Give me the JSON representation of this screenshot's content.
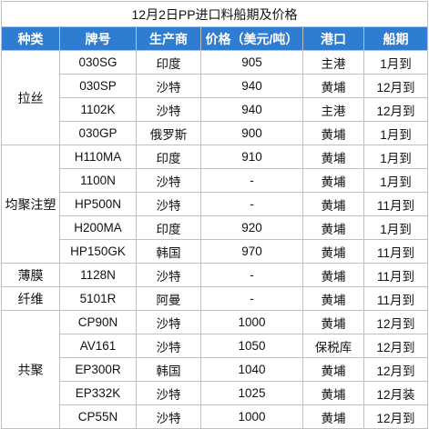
{
  "title": "12月2日PP进口料船期及价格",
  "headers": [
    "种类",
    "牌号",
    "生产商",
    "价格（美元/吨）",
    "港口",
    "船期"
  ],
  "categories": [
    {
      "name": "拉丝",
      "rowspan": 4
    },
    {
      "name": "均聚注塑",
      "rowspan": 5
    },
    {
      "name": "薄膜",
      "rowspan": 1
    },
    {
      "name": "纤维",
      "rowspan": 1
    },
    {
      "name": "共聚",
      "rowspan": 5
    }
  ],
  "rows": [
    {
      "grade": "030SG",
      "maker": "印度",
      "price": "905",
      "port": "主港",
      "ship": "1月到"
    },
    {
      "grade": "030SP",
      "maker": "沙特",
      "price": "940",
      "port": "黄埔",
      "ship": "12月到"
    },
    {
      "grade": "1102K",
      "maker": "沙特",
      "price": "940",
      "port": "主港",
      "ship": "12月到"
    },
    {
      "grade": "030GP",
      "maker": "俄罗斯",
      "price": "900",
      "port": "黄埔",
      "ship": "1月到"
    },
    {
      "grade": "H110MA",
      "maker": "印度",
      "price": "910",
      "port": "黄埔",
      "ship": "1月到"
    },
    {
      "grade": "1100N",
      "maker": "沙特",
      "price": "-",
      "port": "黄埔",
      "ship": "1月到"
    },
    {
      "grade": "HP500N",
      "maker": "沙特",
      "price": "-",
      "port": "黄埔",
      "ship": "11月到"
    },
    {
      "grade": "H200MA",
      "maker": "印度",
      "price": "920",
      "port": "黄埔",
      "ship": "1月到"
    },
    {
      "grade": "HP150GK",
      "maker": "韩国",
      "price": "970",
      "port": "黄埔",
      "ship": "11月到"
    },
    {
      "grade": "1128N",
      "maker": "沙特",
      "price": "-",
      "port": "黄埔",
      "ship": "11月到"
    },
    {
      "grade": "5101R",
      "maker": "阿曼",
      "price": "-",
      "port": "黄埔",
      "ship": "11月到"
    },
    {
      "grade": "CP90N",
      "maker": "沙特",
      "price": "1000",
      "port": "黄埔",
      "ship": "12月到"
    },
    {
      "grade": "AV161",
      "maker": "沙特",
      "price": "1050",
      "port": "保税库",
      "ship": "12月到"
    },
    {
      "grade": "EP300R",
      "maker": "韩国",
      "price": "1040",
      "port": "黄埔",
      "ship": "12月到"
    },
    {
      "grade": "EP332K",
      "maker": "沙特",
      "price": "1025",
      "port": "黄埔",
      "ship": "12月装"
    },
    {
      "grade": "CP55N",
      "maker": "沙特",
      "price": "1000",
      "port": "黄埔",
      "ship": "12月到"
    }
  ],
  "colors": {
    "header_bg": "#2e7dd3",
    "header_text": "#ffffff",
    "border": "#bfbfbf"
  }
}
